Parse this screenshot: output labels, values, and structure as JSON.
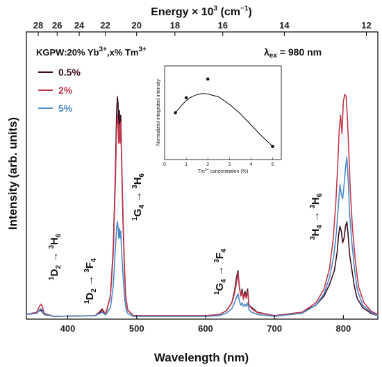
{
  "chart_data": {
    "type": "line",
    "title": "",
    "xlabel": "Wavelength (nm)",
    "ylabel": "Intensity (arb. units)",
    "top_axis_label": "Energy × 10",
    "top_axis_label_sup": "3",
    "top_axis_label_unit": " (cm",
    "top_axis_label_unit_sup": "−1",
    "top_axis_label_end": ")",
    "xlim": [
      340,
      850
    ],
    "xticks": [
      400,
      500,
      600,
      700,
      800
    ],
    "top_ticks": [
      28,
      26,
      24,
      22,
      20,
      18,
      16,
      14,
      12
    ],
    "sample_label": "KGPW:20% Yb",
    "sample_sup1": "3+",
    "sample_mid": ",x% Tm",
    "sample_sup2": "3+",
    "excitation_label": "λ",
    "excitation_sub": "ex",
    "excitation_value": " = 980 nm",
    "legend_position": "top-left",
    "series": [
      {
        "name": "0.5%",
        "color": "#3a0e22",
        "points": [
          [
            340,
            0.02
          ],
          [
            355,
            0.025
          ],
          [
            360,
            0.04
          ],
          [
            362,
            0.035
          ],
          [
            366,
            0.02
          ],
          [
            380,
            0.012
          ],
          [
            440,
            0.015
          ],
          [
            447,
            0.03
          ],
          [
            450,
            0.04
          ],
          [
            452,
            0.03
          ],
          [
            455,
            0.02
          ],
          [
            462,
            0.1
          ],
          [
            466,
            0.3
          ],
          [
            469,
            0.62
          ],
          [
            471,
            0.9
          ],
          [
            472,
            0.96
          ],
          [
            473,
            0.93
          ],
          [
            474,
            0.82
          ],
          [
            475,
            0.9
          ],
          [
            476,
            0.8
          ],
          [
            477,
            0.88
          ],
          [
            478,
            0.7
          ],
          [
            480,
            0.45
          ],
          [
            482,
            0.24
          ],
          [
            484,
            0.1
          ],
          [
            487,
            0.04
          ],
          [
            495,
            0.015
          ],
          [
            600,
            0.015
          ],
          [
            620,
            0.02
          ],
          [
            630,
            0.035
          ],
          [
            638,
            0.07
          ],
          [
            642,
            0.12
          ],
          [
            645,
            0.18
          ],
          [
            647,
            0.21
          ],
          [
            649,
            0.14
          ],
          [
            651,
            0.1
          ],
          [
            653,
            0.13
          ],
          [
            655,
            0.09
          ],
          [
            657,
            0.12
          ],
          [
            659,
            0.1
          ],
          [
            661,
            0.13
          ],
          [
            663,
            0.06
          ],
          [
            667,
            0.05
          ],
          [
            675,
            0.03
          ],
          [
            700,
            0.015
          ],
          [
            740,
            0.03
          ],
          [
            760,
            0.06
          ],
          [
            772,
            0.1
          ],
          [
            780,
            0.15
          ],
          [
            787,
            0.21
          ],
          [
            791,
            0.29
          ],
          [
            793,
            0.36
          ],
          [
            795,
            0.4
          ],
          [
            797,
            0.38
          ],
          [
            799,
            0.33
          ],
          [
            801,
            0.35
          ],
          [
            803,
            0.4
          ],
          [
            805,
            0.42
          ],
          [
            807,
            0.36
          ],
          [
            809,
            0.28
          ],
          [
            812,
            0.22
          ],
          [
            816,
            0.14
          ],
          [
            820,
            0.09
          ],
          [
            828,
            0.05
          ],
          [
            840,
            0.025
          ],
          [
            850,
            0.015
          ]
        ]
      },
      {
        "name": "2%",
        "color": "#c0394b",
        "points": [
          [
            340,
            0.02
          ],
          [
            355,
            0.03
          ],
          [
            358,
            0.05
          ],
          [
            361,
            0.065
          ],
          [
            363,
            0.055
          ],
          [
            366,
            0.025
          ],
          [
            380,
            0.012
          ],
          [
            440,
            0.015
          ],
          [
            447,
            0.035
          ],
          [
            450,
            0.045
          ],
          [
            452,
            0.035
          ],
          [
            455,
            0.022
          ],
          [
            462,
            0.1
          ],
          [
            466,
            0.28
          ],
          [
            469,
            0.58
          ],
          [
            471,
            0.82
          ],
          [
            472,
            0.88
          ],
          [
            473,
            0.85
          ],
          [
            474,
            0.76
          ],
          [
            475,
            0.84
          ],
          [
            476,
            0.76
          ],
          [
            477,
            0.85
          ],
          [
            478,
            0.72
          ],
          [
            480,
            0.48
          ],
          [
            482,
            0.25
          ],
          [
            484,
            0.1
          ],
          [
            487,
            0.04
          ],
          [
            495,
            0.015
          ],
          [
            600,
            0.015
          ],
          [
            620,
            0.02
          ],
          [
            630,
            0.035
          ],
          [
            638,
            0.07
          ],
          [
            642,
            0.11
          ],
          [
            645,
            0.16
          ],
          [
            647,
            0.2
          ],
          [
            649,
            0.14
          ],
          [
            651,
            0.1
          ],
          [
            653,
            0.12
          ],
          [
            655,
            0.085
          ],
          [
            657,
            0.11
          ],
          [
            659,
            0.09
          ],
          [
            661,
            0.12
          ],
          [
            663,
            0.06
          ],
          [
            667,
            0.045
          ],
          [
            675,
            0.028
          ],
          [
            700,
            0.015
          ],
          [
            740,
            0.03
          ],
          [
            760,
            0.07
          ],
          [
            772,
            0.13
          ],
          [
            780,
            0.22
          ],
          [
            785,
            0.34
          ],
          [
            789,
            0.5
          ],
          [
            792,
            0.68
          ],
          [
            794,
            0.82
          ],
          [
            796,
            0.88
          ],
          [
            798,
            0.8
          ],
          [
            800,
            0.94
          ],
          [
            802,
            0.97
          ],
          [
            804,
            0.96
          ],
          [
            806,
            0.86
          ],
          [
            808,
            0.72
          ],
          [
            810,
            0.56
          ],
          [
            813,
            0.4
          ],
          [
            817,
            0.26
          ],
          [
            822,
            0.14
          ],
          [
            830,
            0.07
          ],
          [
            840,
            0.035
          ],
          [
            850,
            0.02
          ]
        ]
      },
      {
        "name": "5%",
        "color": "#4a88c9",
        "points": [
          [
            340,
            0.02
          ],
          [
            355,
            0.025
          ],
          [
            359,
            0.04
          ],
          [
            361,
            0.045
          ],
          [
            363,
            0.038
          ],
          [
            366,
            0.022
          ],
          [
            380,
            0.012
          ],
          [
            440,
            0.015
          ],
          [
            447,
            0.025
          ],
          [
            450,
            0.03
          ],
          [
            452,
            0.025
          ],
          [
            455,
            0.018
          ],
          [
            462,
            0.05
          ],
          [
            466,
            0.14
          ],
          [
            469,
            0.3
          ],
          [
            471,
            0.4
          ],
          [
            472,
            0.42
          ],
          [
            473,
            0.4
          ],
          [
            474,
            0.35
          ],
          [
            475,
            0.39
          ],
          [
            476,
            0.35
          ],
          [
            477,
            0.38
          ],
          [
            478,
            0.3
          ],
          [
            480,
            0.2
          ],
          [
            482,
            0.11
          ],
          [
            484,
            0.05
          ],
          [
            487,
            0.025
          ],
          [
            495,
            0.012
          ],
          [
            600,
            0.012
          ],
          [
            620,
            0.015
          ],
          [
            630,
            0.025
          ],
          [
            638,
            0.045
          ],
          [
            642,
            0.07
          ],
          [
            645,
            0.095
          ],
          [
            647,
            0.11
          ],
          [
            649,
            0.08
          ],
          [
            651,
            0.06
          ],
          [
            653,
            0.07
          ],
          [
            655,
            0.055
          ],
          [
            657,
            0.065
          ],
          [
            659,
            0.055
          ],
          [
            661,
            0.07
          ],
          [
            663,
            0.04
          ],
          [
            667,
            0.03
          ],
          [
            675,
            0.02
          ],
          [
            700,
            0.012
          ],
          [
            740,
            0.025
          ],
          [
            760,
            0.06
          ],
          [
            772,
            0.11
          ],
          [
            780,
            0.18
          ],
          [
            786,
            0.27
          ],
          [
            790,
            0.38
          ],
          [
            793,
            0.5
          ],
          [
            795,
            0.58
          ],
          [
            797,
            0.54
          ],
          [
            799,
            0.52
          ],
          [
            801,
            0.58
          ],
          [
            803,
            0.65
          ],
          [
            805,
            0.7
          ],
          [
            807,
            0.6
          ],
          [
            809,
            0.46
          ],
          [
            812,
            0.34
          ],
          [
            816,
            0.22
          ],
          [
            820,
            0.13
          ],
          [
            828,
            0.06
          ],
          [
            840,
            0.03
          ],
          [
            850,
            0.015
          ]
        ]
      }
    ],
    "annotations": [
      {
        "upper": "1",
        "letter": "D",
        "sub": "2",
        "arrow": " → ",
        "upper2": "3",
        "letter2": "H",
        "sub2": "6"
      },
      {
        "upper": "1",
        "letter": "D",
        "sub": "2",
        "arrow": " → ",
        "upper2": "3",
        "letter2": "F",
        "sub2": "4"
      },
      {
        "upper": "1",
        "letter": "G",
        "sub": "4",
        "arrow": " → ",
        "upper2": "3",
        "letter2": "H",
        "sub2": "6"
      },
      {
        "upper": "1",
        "letter": "G",
        "sub": "4",
        "arrow": " → ",
        "upper2": "3",
        "letter2": "F",
        "sub2": "4"
      },
      {
        "upper": "3",
        "letter": "H",
        "sub": "4",
        "arrow": " → ",
        "upper2": "3",
        "letter2": "H",
        "sub2": "6"
      }
    ],
    "inset": {
      "type": "scatter",
      "xlabel_prefix": "Tm",
      "xlabel_sup": "3+",
      "xlabel_suffix": " concentration (%)",
      "ylabel": "Normalized integrated intensity",
      "xlim": [
        0,
        5.4
      ],
      "xticks": [
        0,
        1,
        2,
        3,
        4,
        5
      ],
      "ylim": [
        0.05,
        1.05
      ],
      "points": [
        [
          0.5,
          0.55
        ],
        [
          1,
          0.71
        ],
        [
          2,
          0.91
        ],
        [
          5,
          0.19
        ]
      ],
      "fit_curve": [
        [
          0.5,
          0.55
        ],
        [
          0.75,
          0.62
        ],
        [
          1,
          0.68
        ],
        [
          1.25,
          0.72
        ],
        [
          1.5,
          0.745
        ],
        [
          1.75,
          0.755
        ],
        [
          2,
          0.75
        ],
        [
          2.5,
          0.72
        ],
        [
          3,
          0.64
        ],
        [
          3.5,
          0.54
        ],
        [
          4,
          0.42
        ],
        [
          4.5,
          0.3
        ],
        [
          5,
          0.19
        ]
      ]
    }
  }
}
